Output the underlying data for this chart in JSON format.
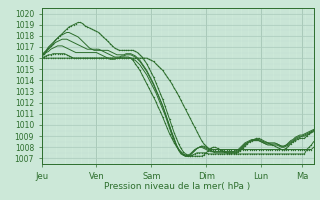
{
  "title": "",
  "xlabel": "Pression niveau de la mer( hPa )",
  "ylim": [
    1007,
    1020
  ],
  "yticks": [
    1007,
    1008,
    1009,
    1010,
    1011,
    1012,
    1013,
    1014,
    1015,
    1016,
    1017,
    1018,
    1019,
    1020
  ],
  "xday_labels": [
    "Jeu",
    "Ven",
    "Sam",
    "Dim",
    "Lun",
    "Ma"
  ],
  "xday_positions": [
    0,
    24,
    48,
    72,
    96,
    114
  ],
  "xlim": [
    0,
    119
  ],
  "bg_color": "#cce8d8",
  "grid_color_major": "#aacaba",
  "grid_color_minor": "#bddace",
  "line_color": "#2d6e2d",
  "n_points": 120,
  "series": [
    [
      1016.0,
      1016.1,
      1016.2,
      1016.3,
      1016.3,
      1016.4,
      1016.4,
      1016.4,
      1016.4,
      1016.4,
      1016.4,
      1016.3,
      1016.2,
      1016.1,
      1016.0,
      1016.0,
      1016.0,
      1016.0,
      1016.0,
      1016.0,
      1016.0,
      1016.0,
      1016.0,
      1016.0,
      1016.0,
      1016.0,
      1016.0,
      1016.0,
      1016.0,
      1016.0,
      1016.0,
      1016.0,
      1016.0,
      1016.0,
      1016.0,
      1016.0,
      1016.0,
      1016.0,
      1016.0,
      1016.0,
      1016.0,
      1016.0,
      1016.0,
      1016.0,
      1016.0,
      1016.0,
      1016.0,
      1015.9,
      1015.8,
      1015.7,
      1015.5,
      1015.3,
      1015.1,
      1014.9,
      1014.6,
      1014.3,
      1014.0,
      1013.7,
      1013.3,
      1013.0,
      1012.6,
      1012.2,
      1011.8,
      1011.4,
      1011.0,
      1010.6,
      1010.2,
      1009.8,
      1009.4,
      1009.0,
      1008.6,
      1008.3,
      1008.1,
      1007.9,
      1007.8,
      1007.8,
      1007.8,
      1007.8,
      1007.8,
      1007.8,
      1007.8,
      1007.8,
      1007.8,
      1007.8,
      1007.8,
      1007.8,
      1007.8,
      1007.8,
      1007.8,
      1007.8,
      1007.8,
      1007.8,
      1007.8,
      1007.8,
      1007.8,
      1007.8,
      1007.8,
      1007.8,
      1007.8,
      1007.8,
      1007.8,
      1007.8,
      1007.8,
      1007.8,
      1007.8,
      1007.8,
      1007.8,
      1007.8,
      1007.8,
      1007.8,
      1007.8,
      1007.8,
      1007.8,
      1007.8,
      1007.8,
      1007.8,
      1007.8,
      1007.8,
      1007.8,
      1008.0
    ],
    [
      1016.0,
      1016.0,
      1016.0,
      1016.0,
      1016.0,
      1016.0,
      1016.0,
      1016.0,
      1016.0,
      1016.0,
      1016.0,
      1016.0,
      1016.0,
      1016.0,
      1016.0,
      1016.0,
      1016.0,
      1016.0,
      1016.0,
      1016.0,
      1016.0,
      1016.0,
      1016.0,
      1016.0,
      1016.0,
      1016.0,
      1016.0,
      1016.0,
      1016.0,
      1016.0,
      1016.0,
      1016.0,
      1016.0,
      1016.0,
      1016.0,
      1016.0,
      1016.0,
      1016.0,
      1016.0,
      1016.0,
      1015.8,
      1015.5,
      1015.2,
      1014.9,
      1014.5,
      1014.1,
      1013.7,
      1013.3,
      1012.9,
      1012.5,
      1012.1,
      1011.6,
      1011.2,
      1010.7,
      1010.2,
      1009.7,
      1009.2,
      1008.8,
      1008.4,
      1008.1,
      1007.8,
      1007.6,
      1007.4,
      1007.3,
      1007.2,
      1007.2,
      1007.3,
      1007.4,
      1007.5,
      1007.5,
      1007.5,
      1007.5,
      1007.5,
      1007.4,
      1007.4,
      1007.4,
      1007.4,
      1007.4,
      1007.4,
      1007.4,
      1007.4,
      1007.4,
      1007.4,
      1007.4,
      1007.4,
      1007.4,
      1007.4,
      1007.4,
      1007.4,
      1007.4,
      1007.4,
      1007.4,
      1007.4,
      1007.4,
      1007.4,
      1007.4,
      1007.4,
      1007.4,
      1007.4,
      1007.4,
      1007.4,
      1007.4,
      1007.4,
      1007.4,
      1007.4,
      1007.4,
      1007.4,
      1007.4,
      1007.4,
      1007.4,
      1007.4,
      1007.4,
      1007.4,
      1007.4,
      1007.4,
      1007.4,
      1007.8,
      1008.0,
      1008.2,
      1008.5
    ],
    [
      1016.2,
      1016.4,
      1016.6,
      1016.9,
      1017.1,
      1017.3,
      1017.6,
      1017.8,
      1018.0,
      1018.2,
      1018.4,
      1018.6,
      1018.8,
      1018.9,
      1019.0,
      1019.1,
      1019.2,
      1019.2,
      1019.1,
      1018.9,
      1018.8,
      1018.7,
      1018.6,
      1018.5,
      1018.4,
      1018.3,
      1018.1,
      1017.9,
      1017.7,
      1017.5,
      1017.3,
      1017.1,
      1016.9,
      1016.8,
      1016.7,
      1016.7,
      1016.7,
      1016.7,
      1016.7,
      1016.7,
      1016.7,
      1016.6,
      1016.5,
      1016.3,
      1016.1,
      1015.8,
      1015.5,
      1015.1,
      1014.7,
      1014.3,
      1013.8,
      1013.3,
      1012.8,
      1012.3,
      1011.7,
      1011.1,
      1010.5,
      1009.9,
      1009.3,
      1008.8,
      1008.3,
      1007.9,
      1007.6,
      1007.4,
      1007.3,
      1007.2,
      1007.2,
      1007.2,
      1007.2,
      1007.2,
      1007.2,
      1007.3,
      1007.5,
      1007.7,
      1007.9,
      1008.0,
      1008.0,
      1007.9,
      1007.8,
      1007.7,
      1007.6,
      1007.5,
      1007.5,
      1007.5,
      1007.5,
      1007.5,
      1007.6,
      1007.7,
      1007.9,
      1008.1,
      1008.3,
      1008.5,
      1008.6,
      1008.7,
      1008.8,
      1008.8,
      1008.7,
      1008.6,
      1008.5,
      1008.4,
      1008.3,
      1008.2,
      1008.1,
      1008.0,
      1007.9,
      1007.8,
      1007.8,
      1007.9,
      1008.1,
      1008.3,
      1008.5,
      1008.6,
      1008.7,
      1008.8,
      1008.8,
      1008.8,
      1009.0,
      1009.2,
      1009.4,
      1009.5
    ],
    [
      1016.2,
      1016.5,
      1016.7,
      1017.0,
      1017.2,
      1017.4,
      1017.6,
      1017.8,
      1018.0,
      1018.1,
      1018.2,
      1018.3,
      1018.3,
      1018.2,
      1018.1,
      1018.0,
      1017.9,
      1017.7,
      1017.5,
      1017.3,
      1017.1,
      1016.9,
      1016.8,
      1016.7,
      1016.7,
      1016.7,
      1016.7,
      1016.7,
      1016.7,
      1016.7,
      1016.6,
      1016.5,
      1016.4,
      1016.3,
      1016.3,
      1016.3,
      1016.3,
      1016.4,
      1016.4,
      1016.4,
      1016.3,
      1016.2,
      1016.0,
      1015.8,
      1015.5,
      1015.2,
      1014.9,
      1014.5,
      1014.1,
      1013.7,
      1013.2,
      1012.7,
      1012.2,
      1011.7,
      1011.1,
      1010.5,
      1009.9,
      1009.3,
      1008.7,
      1008.2,
      1007.8,
      1007.5,
      1007.3,
      1007.2,
      1007.2,
      1007.3,
      1007.5,
      1007.7,
      1007.9,
      1008.0,
      1008.1,
      1008.1,
      1008.0,
      1007.9,
      1007.7,
      1007.6,
      1007.5,
      1007.5,
      1007.5,
      1007.5,
      1007.5,
      1007.5,
      1007.5,
      1007.5,
      1007.5,
      1007.5,
      1007.6,
      1007.8,
      1008.0,
      1008.2,
      1008.4,
      1008.5,
      1008.6,
      1008.6,
      1008.6,
      1008.6,
      1008.5,
      1008.4,
      1008.3,
      1008.2,
      1008.2,
      1008.2,
      1008.2,
      1008.2,
      1008.1,
      1008.0,
      1008.0,
      1008.1,
      1008.2,
      1008.4,
      1008.5,
      1008.7,
      1008.8,
      1008.9,
      1009.0,
      1009.0,
      1009.1,
      1009.2,
      1009.3,
      1009.4
    ],
    [
      1016.2,
      1016.4,
      1016.6,
      1016.8,
      1017.0,
      1017.2,
      1017.4,
      1017.5,
      1017.6,
      1017.7,
      1017.7,
      1017.7,
      1017.6,
      1017.5,
      1017.4,
      1017.3,
      1017.2,
      1017.1,
      1017.0,
      1016.9,
      1016.8,
      1016.8,
      1016.8,
      1016.8,
      1016.8,
      1016.8,
      1016.7,
      1016.6,
      1016.5,
      1016.4,
      1016.3,
      1016.2,
      1016.1,
      1016.1,
      1016.1,
      1016.2,
      1016.2,
      1016.3,
      1016.3,
      1016.3,
      1016.2,
      1016.1,
      1015.9,
      1015.7,
      1015.4,
      1015.1,
      1014.8,
      1014.4,
      1014.0,
      1013.6,
      1013.1,
      1012.7,
      1012.2,
      1011.7,
      1011.1,
      1010.5,
      1009.9,
      1009.3,
      1008.8,
      1008.2,
      1007.8,
      1007.5,
      1007.3,
      1007.2,
      1007.2,
      1007.3,
      1007.5,
      1007.7,
      1007.9,
      1008.0,
      1008.1,
      1008.0,
      1007.9,
      1007.8,
      1007.7,
      1007.6,
      1007.6,
      1007.6,
      1007.6,
      1007.6,
      1007.6,
      1007.6,
      1007.6,
      1007.6,
      1007.6,
      1007.6,
      1007.7,
      1007.9,
      1008.1,
      1008.3,
      1008.4,
      1008.5,
      1008.6,
      1008.6,
      1008.6,
      1008.6,
      1008.5,
      1008.4,
      1008.3,
      1008.3,
      1008.3,
      1008.3,
      1008.3,
      1008.3,
      1008.2,
      1008.1,
      1008.1,
      1008.2,
      1008.3,
      1008.5,
      1008.6,
      1008.8,
      1008.9,
      1009.0,
      1009.0,
      1009.1,
      1009.2,
      1009.3,
      1009.4,
      1009.5
    ],
    [
      1016.2,
      1016.3,
      1016.5,
      1016.6,
      1016.8,
      1016.9,
      1017.0,
      1017.1,
      1017.1,
      1017.1,
      1017.0,
      1016.9,
      1016.8,
      1016.7,
      1016.6,
      1016.5,
      1016.5,
      1016.5,
      1016.5,
      1016.5,
      1016.5,
      1016.5,
      1016.5,
      1016.5,
      1016.5,
      1016.4,
      1016.3,
      1016.2,
      1016.1,
      1016.0,
      1015.9,
      1015.9,
      1015.9,
      1016.0,
      1016.0,
      1016.1,
      1016.1,
      1016.1,
      1016.1,
      1016.0,
      1015.9,
      1015.8,
      1015.6,
      1015.4,
      1015.1,
      1014.8,
      1014.5,
      1014.1,
      1013.7,
      1013.3,
      1012.9,
      1012.4,
      1011.9,
      1011.4,
      1010.9,
      1010.3,
      1009.7,
      1009.1,
      1008.6,
      1008.1,
      1007.7,
      1007.4,
      1007.3,
      1007.2,
      1007.3,
      1007.4,
      1007.6,
      1007.8,
      1007.9,
      1008.0,
      1008.0,
      1007.9,
      1007.8,
      1007.7,
      1007.6,
      1007.6,
      1007.6,
      1007.6,
      1007.6,
      1007.6,
      1007.6,
      1007.6,
      1007.6,
      1007.6,
      1007.6,
      1007.7,
      1007.8,
      1008.0,
      1008.2,
      1008.4,
      1008.5,
      1008.6,
      1008.7,
      1008.7,
      1008.7,
      1008.7,
      1008.6,
      1008.5,
      1008.4,
      1008.4,
      1008.4,
      1008.4,
      1008.4,
      1008.3,
      1008.2,
      1008.1,
      1008.1,
      1008.2,
      1008.4,
      1008.6,
      1008.7,
      1008.9,
      1009.0,
      1009.1,
      1009.1,
      1009.2,
      1009.3,
      1009.4,
      1009.5,
      1009.6
    ]
  ]
}
